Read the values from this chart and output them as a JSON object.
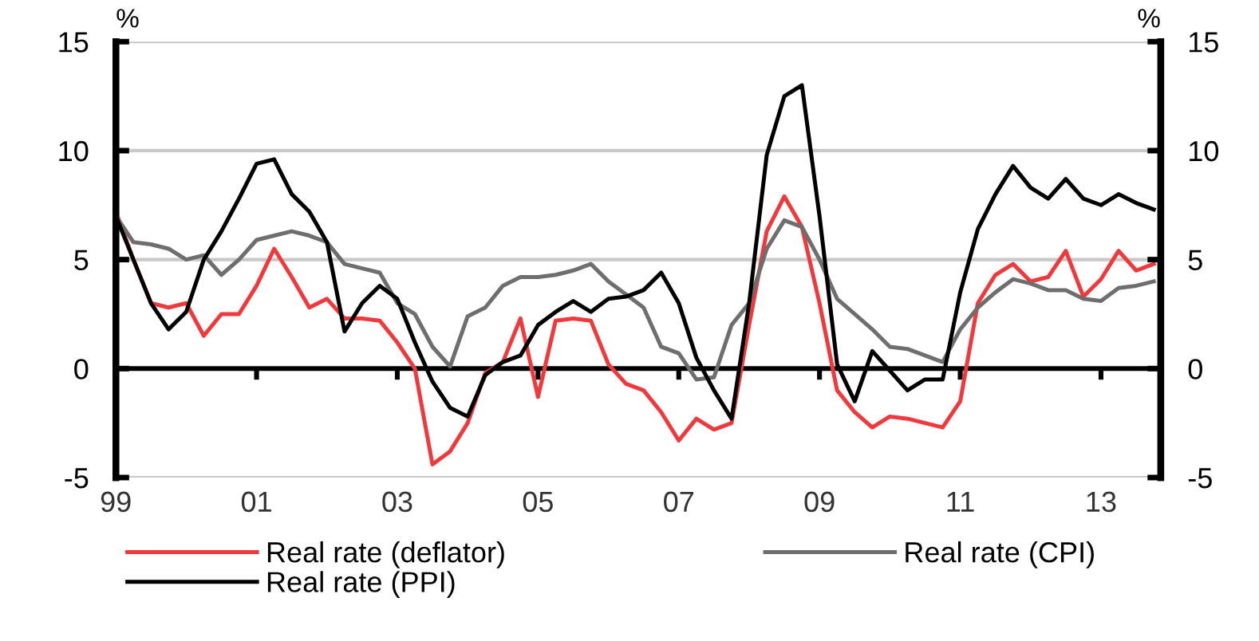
{
  "chart_data": {
    "type": "line",
    "ylabel": "%",
    "y2label": "%",
    "x": [
      1999.0,
      1999.25,
      1999.5,
      1999.75,
      2000.0,
      2000.25,
      2000.5,
      2000.75,
      2001.0,
      2001.25,
      2001.5,
      2001.75,
      2002.0,
      2002.25,
      2002.5,
      2002.75,
      2003.0,
      2003.25,
      2003.5,
      2003.75,
      2004.0,
      2004.25,
      2004.5,
      2004.75,
      2005.0,
      2005.25,
      2005.5,
      2005.75,
      2006.0,
      2006.25,
      2006.5,
      2006.75,
      2007.0,
      2007.25,
      2007.5,
      2007.75,
      2008.0,
      2008.25,
      2008.5,
      2008.75,
      2009.0,
      2009.25,
      2009.5,
      2009.75,
      2010.0,
      2010.25,
      2010.5,
      2010.75,
      2011.0,
      2011.25,
      2011.5,
      2011.75,
      2012.0,
      2012.25,
      2012.5,
      2012.75,
      2013.0,
      2013.25,
      2013.5,
      2013.75
    ],
    "series": [
      {
        "name": "Real rate (deflator)",
        "color": "#f0393c",
        "values": [
          7.2,
          5,
          3,
          2.8,
          3.0,
          1.5,
          2.5,
          2.5,
          3.8,
          5.5,
          4.2,
          2.8,
          3.2,
          2.3,
          2.3,
          2.2,
          1.2,
          0,
          -4.4,
          -3.8,
          -2.5,
          -0.2,
          0.3,
          2.3,
          -1.3,
          2.2,
          2.3,
          2.2,
          0.2,
          -0.7,
          -1.0,
          -2.0,
          -3.3,
          -2.3,
          -2.8,
          -2.5,
          2.0,
          6.3,
          7.9,
          6.5,
          3.0,
          -1.0,
          -2.0,
          -2.7,
          -2.2,
          -2.3,
          -2.5,
          -2.7,
          -1.5,
          3.0,
          4.3,
          4.8,
          4.0,
          4.2,
          5.4,
          3.3,
          4.1,
          5.4,
          4.5,
          4.8
        ]
      },
      {
        "name": "Real rate (CPI)",
        "color": "#6e6e6e",
        "values": [
          7.0,
          5.8,
          5.7,
          5.5,
          5.0,
          5.2,
          4.3,
          5.0,
          5.9,
          6.1,
          6.3,
          6.1,
          5.8,
          4.8,
          4.6,
          4.4,
          3.0,
          2.5,
          1.0,
          0.1,
          2.4,
          2.8,
          3.8,
          4.2,
          4.2,
          4.3,
          4.5,
          4.8,
          4.0,
          3.4,
          2.8,
          1.0,
          0.7,
          -0.5,
          -0.4,
          2.0,
          3.0,
          5.5,
          6.8,
          6.5,
          5.0,
          3.2,
          2.5,
          1.8,
          1.0,
          0.9,
          0.6,
          0.3,
          1.8,
          2.8,
          3.5,
          4.1,
          3.9,
          3.6,
          3.6,
          3.2,
          3.1,
          3.7,
          3.8,
          4.0
        ]
      },
      {
        "name": "Real rate (PPI)",
        "color": "#000000",
        "values": [
          7.0,
          5.0,
          3.0,
          1.8,
          2.6,
          5.0,
          6.3,
          7.8,
          9.4,
          9.6,
          8.0,
          7.2,
          5.8,
          1.7,
          3.0,
          3.8,
          3.2,
          1.2,
          -0.6,
          -1.8,
          -2.2,
          -0.3,
          0.3,
          0.6,
          2.0,
          2.6,
          3.1,
          2.6,
          3.2,
          3.3,
          3.6,
          4.4,
          3.0,
          0.5,
          -1.0,
          -2.3,
          3.0,
          9.8,
          12.5,
          13.0,
          7.0,
          0.2,
          -1.5,
          0.8,
          -0.1,
          -1.0,
          -0.5,
          -0.5,
          3.5,
          6.4,
          8.0,
          9.3,
          8.3,
          7.8,
          8.7,
          7.8,
          7.5,
          8.0,
          7.6,
          7.3
        ]
      }
    ],
    "xlim": [
      1999.0,
      2013.85
    ],
    "xticks": [
      {
        "value": 1999,
        "label": "99"
      },
      {
        "value": 2001,
        "label": "01"
      },
      {
        "value": 2003,
        "label": "03"
      },
      {
        "value": 2005,
        "label": "05"
      },
      {
        "value": 2007,
        "label": "07"
      },
      {
        "value": 2009,
        "label": "09"
      },
      {
        "value": 2011,
        "label": "11"
      },
      {
        "value": 2013,
        "label": "13"
      }
    ],
    "ylim": [
      -5,
      15
    ],
    "yticks": [
      -5,
      0,
      5,
      10,
      15
    ],
    "y2lim": [
      -5,
      15
    ],
    "y2ticks": [
      -5,
      0,
      5,
      10,
      15
    ],
    "grid": "y",
    "legend": "bottom",
    "marker": "none",
    "line_style": "solid"
  }
}
